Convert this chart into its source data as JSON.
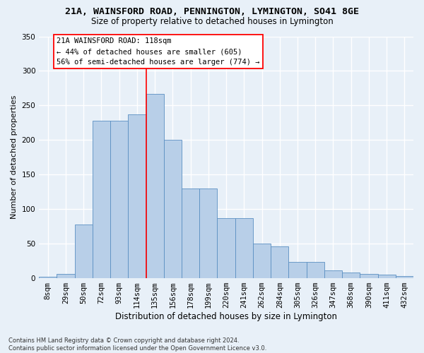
{
  "title1": "21A, WAINSFORD ROAD, PENNINGTON, LYMINGTON, SO41 8GE",
  "title2": "Size of property relative to detached houses in Lymington",
  "xlabel": "Distribution of detached houses by size in Lymington",
  "ylabel": "Number of detached properties",
  "bar_labels": [
    "8sqm",
    "29sqm",
    "50sqm",
    "72sqm",
    "93sqm",
    "114sqm",
    "135sqm",
    "156sqm",
    "178sqm",
    "199sqm",
    "220sqm",
    "241sqm",
    "262sqm",
    "284sqm",
    "305sqm",
    "326sqm",
    "347sqm",
    "368sqm",
    "390sqm",
    "411sqm",
    "432sqm"
  ],
  "bar_values": [
    2,
    6,
    78,
    228,
    228,
    237,
    267,
    200,
    130,
    130,
    87,
    87,
    50,
    46,
    24,
    24,
    11,
    8,
    6,
    5,
    3
  ],
  "bar_color": "#b8cfe8",
  "bar_edge_color": "#5a8fc2",
  "vline_color": "red",
  "vline_x": 5.5,
  "annotation_line1": "21A WAINSFORD ROAD: 118sqm",
  "annotation_line2": "← 44% of detached houses are smaller (605)",
  "annotation_line3": "56% of semi-detached houses are larger (774) →",
  "footer_line1": "Contains HM Land Registry data © Crown copyright and database right 2024.",
  "footer_line2": "Contains public sector information licensed under the Open Government Licence v3.0.",
  "bg_color": "#e8f0f8",
  "grid_color": "#ffffff",
  "ylim_max": 350,
  "title1_fontsize": 9.5,
  "title2_fontsize": 8.5,
  "xlabel_fontsize": 8.5,
  "ylabel_fontsize": 8.0,
  "tick_fontsize": 7.5,
  "annotation_fontsize": 7.5,
  "footer_fontsize": 6.0
}
